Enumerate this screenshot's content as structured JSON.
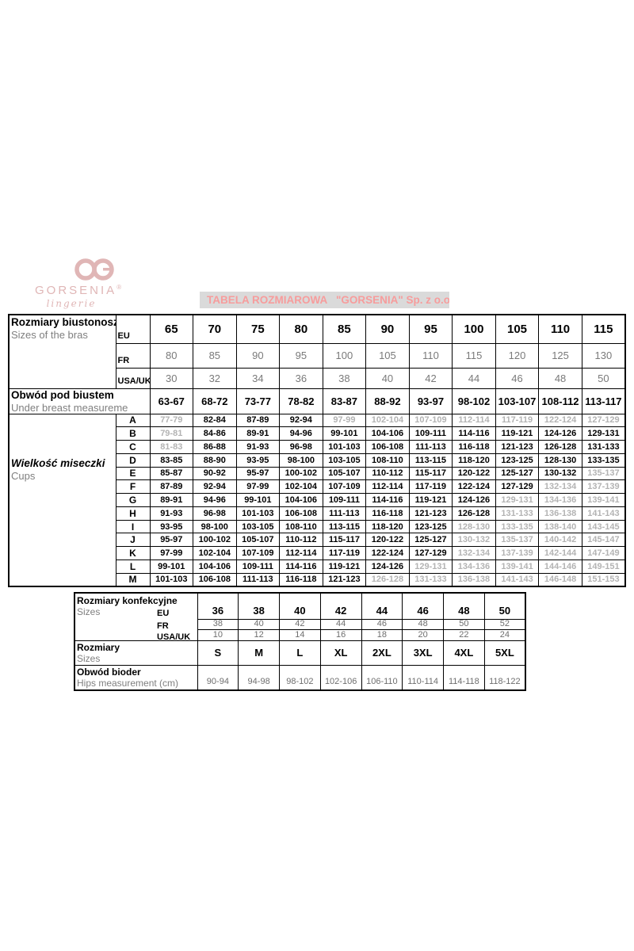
{
  "page": {
    "background": "#ffffff"
  },
  "logo": {
    "brand": "GORSENIA",
    "registered": "®",
    "tagline": "lingerie",
    "color": "#e0b6b6"
  },
  "title_bar": {
    "text": "TABELA ROZMIAROWA   \"GORSENIA\" Sp. z o.o.",
    "text_color": "#f79c9c",
    "background": "#dadada"
  },
  "bra_table": {
    "corner_title": "Rozmiary biustonoszy",
    "corner_subtitle": "Sizes of the bras",
    "size_systems": [
      {
        "label": "EU",
        "emphasis": "bold",
        "values": [
          "65",
          "70",
          "75",
          "80",
          "85",
          "90",
          "95",
          "100",
          "105",
          "110",
          "115"
        ]
      },
      {
        "label": "FR",
        "emphasis": "gray",
        "values": [
          "80",
          "85",
          "90",
          "95",
          "100",
          "105",
          "110",
          "115",
          "120",
          "125",
          "130"
        ]
      },
      {
        "label": "USA/UK",
        "emphasis": "gray",
        "values": [
          "30",
          "32",
          "34",
          "36",
          "38",
          "40",
          "42",
          "44",
          "46",
          "48",
          "50"
        ]
      }
    ],
    "underbust_title": "Obwód pod biustem",
    "underbust_subtitle": "Under breast measureme",
    "underbust_values": [
      "63-67",
      "68-72",
      "73-77",
      "78-82",
      "83-87",
      "88-92",
      "93-97",
      "98-102",
      "103-107",
      "108-112",
      "113-117"
    ],
    "cups_title": "Wielkość miseczki",
    "cups_subtitle": "Cups",
    "cup_rows": [
      {
        "cup": "A",
        "values": [
          "77-79",
          "82-84",
          "87-89",
          "92-94",
          "97-99",
          "102-104",
          "107-109",
          "112-114",
          "117-119",
          "122-124",
          "127-129"
        ],
        "gray_cols": [
          0,
          4,
          5,
          6,
          7,
          8,
          9,
          10
        ]
      },
      {
        "cup": "B",
        "values": [
          "79-81",
          "84-86",
          "89-91",
          "94-96",
          "99-101",
          "104-106",
          "109-111",
          "114-116",
          "119-121",
          "124-126",
          "129-131"
        ],
        "gray_cols": [
          0
        ]
      },
      {
        "cup": "C",
        "values": [
          "81-83",
          "86-88",
          "91-93",
          "96-98",
          "101-103",
          "106-108",
          "111-113",
          "116-118",
          "121-123",
          "126-128",
          "131-133"
        ],
        "gray_cols": [
          0
        ]
      },
      {
        "cup": "D",
        "values": [
          "83-85",
          "88-90",
          "93-95",
          "98-100",
          "103-105",
          "108-110",
          "113-115",
          "118-120",
          "123-125",
          "128-130",
          "133-135"
        ],
        "gray_cols": []
      },
      {
        "cup": "E",
        "values": [
          "85-87",
          "90-92",
          "95-97",
          "100-102",
          "105-107",
          "110-112",
          "115-117",
          "120-122",
          "125-127",
          "130-132",
          "135-137"
        ],
        "gray_cols": [
          10
        ]
      },
      {
        "cup": "F",
        "values": [
          "87-89",
          "92-94",
          "97-99",
          "102-104",
          "107-109",
          "112-114",
          "117-119",
          "122-124",
          "127-129",
          "132-134",
          "137-139"
        ],
        "gray_cols": [
          9,
          10
        ]
      },
      {
        "cup": "G",
        "values": [
          "89-91",
          "94-96",
          "99-101",
          "104-106",
          "109-111",
          "114-116",
          "119-121",
          "124-126",
          "129-131",
          "134-136",
          "139-141"
        ],
        "gray_cols": [
          8,
          9,
          10
        ]
      },
      {
        "cup": "H",
        "values": [
          "91-93",
          "96-98",
          "101-103",
          "106-108",
          "111-113",
          "116-118",
          "121-123",
          "126-128",
          "131-133",
          "136-138",
          "141-143"
        ],
        "gray_cols": [
          8,
          9,
          10
        ]
      },
      {
        "cup": "I",
        "values": [
          "93-95",
          "98-100",
          "103-105",
          "108-110",
          "113-115",
          "118-120",
          "123-125",
          "128-130",
          "133-135",
          "138-140",
          "143-145"
        ],
        "gray_cols": [
          7,
          8,
          9,
          10
        ]
      },
      {
        "cup": "J",
        "values": [
          "95-97",
          "100-102",
          "105-107",
          "110-112",
          "115-117",
          "120-122",
          "125-127",
          "130-132",
          "135-137",
          "140-142",
          "145-147"
        ],
        "gray_cols": [
          7,
          8,
          9,
          10
        ]
      },
      {
        "cup": "K",
        "values": [
          "97-99",
          "102-104",
          "107-109",
          "112-114",
          "117-119",
          "122-124",
          "127-129",
          "132-134",
          "137-139",
          "142-144",
          "147-149"
        ],
        "gray_cols": [
          7,
          8,
          9,
          10
        ]
      },
      {
        "cup": "L",
        "values": [
          "99-101",
          "104-106",
          "109-111",
          "114-116",
          "119-121",
          "124-126",
          "129-131",
          "134-136",
          "139-141",
          "144-146",
          "149-151"
        ],
        "gray_cols": [
          6,
          7,
          8,
          9,
          10
        ]
      },
      {
        "cup": "M",
        "values": [
          "101-103",
          "106-108",
          "111-113",
          "116-118",
          "121-123",
          "126-128",
          "131-133",
          "136-138",
          "141-143",
          "146-148",
          "151-153"
        ],
        "gray_cols": [
          5,
          6,
          7,
          8,
          9,
          10
        ]
      }
    ],
    "colors": {
      "muted_value": "#b3b3b3",
      "secondary_text": "#7f7f7f"
    }
  },
  "clothing_table": {
    "corner_title": "Rozmiary konfekcyjne",
    "corner_subtitle": "Sizes",
    "size_systems": [
      {
        "label": "EU",
        "emphasis": "bold",
        "values": [
          "36",
          "38",
          "40",
          "42",
          "44",
          "46",
          "48",
          "50"
        ]
      },
      {
        "label": "FR",
        "emphasis": "gray",
        "values": [
          "38",
          "40",
          "42",
          "44",
          "46",
          "48",
          "50",
          "52"
        ]
      },
      {
        "label": "USA/UK",
        "emphasis": "gray",
        "values": [
          "10",
          "12",
          "14",
          "16",
          "18",
          "20",
          "22",
          "24"
        ]
      }
    ],
    "letter_row_title": "Rozmiary",
    "letter_row_subtitle": "Sizes",
    "letter_values": [
      "S",
      "M",
      "L",
      "XL",
      "2XL",
      "3XL",
      "4XL",
      "5XL"
    ],
    "hips_title": "Obwód bioder",
    "hips_subtitle": "Hips measurement (cm)",
    "hips_values": [
      "90-94",
      "94-98",
      "98-102",
      "102-106",
      "106-110",
      "110-114",
      "114-118",
      "118-122"
    ]
  }
}
